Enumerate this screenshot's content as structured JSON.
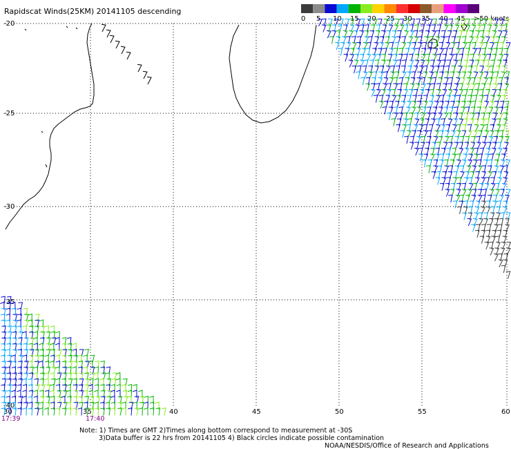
{
  "title": "Rapidscat Winds(25KM) 20141105 descending",
  "legend": {
    "colors": [
      "#3c3c3c",
      "#8c8c8c",
      "#0a0ad2",
      "#00a8ff",
      "#00b400",
      "#8aec1e",
      "#ffd200",
      "#ff8a00",
      "#ff3030",
      "#d70000",
      "#8c5a2a",
      "#e8a07c",
      "#ff00ff",
      "#a000d2",
      "#5a0078"
    ],
    "labels": [
      "0",
      "5",
      "10",
      "15",
      "20",
      "25",
      "30",
      "35",
      "40",
      "45",
      ">50 knots"
    ]
  },
  "axes": {
    "lat_labels": [
      "-20",
      "-25",
      "-30",
      "-35",
      "-40"
    ],
    "lon_labels": [
      "30",
      "35",
      "40",
      "45",
      "50",
      "55",
      "60"
    ]
  },
  "times": [
    "17:39",
    "17:40"
  ],
  "notes": {
    "line1": "Note: 1) Times are GMT 2)Times along bottom correspond to measurement at -30S",
    "line2": "3)Data buffer is 22 hrs from 20141105 4) Black circles indicate possible contamination",
    "line3": "NOAA/NESDIS/Office of Research and Applications"
  }
}
